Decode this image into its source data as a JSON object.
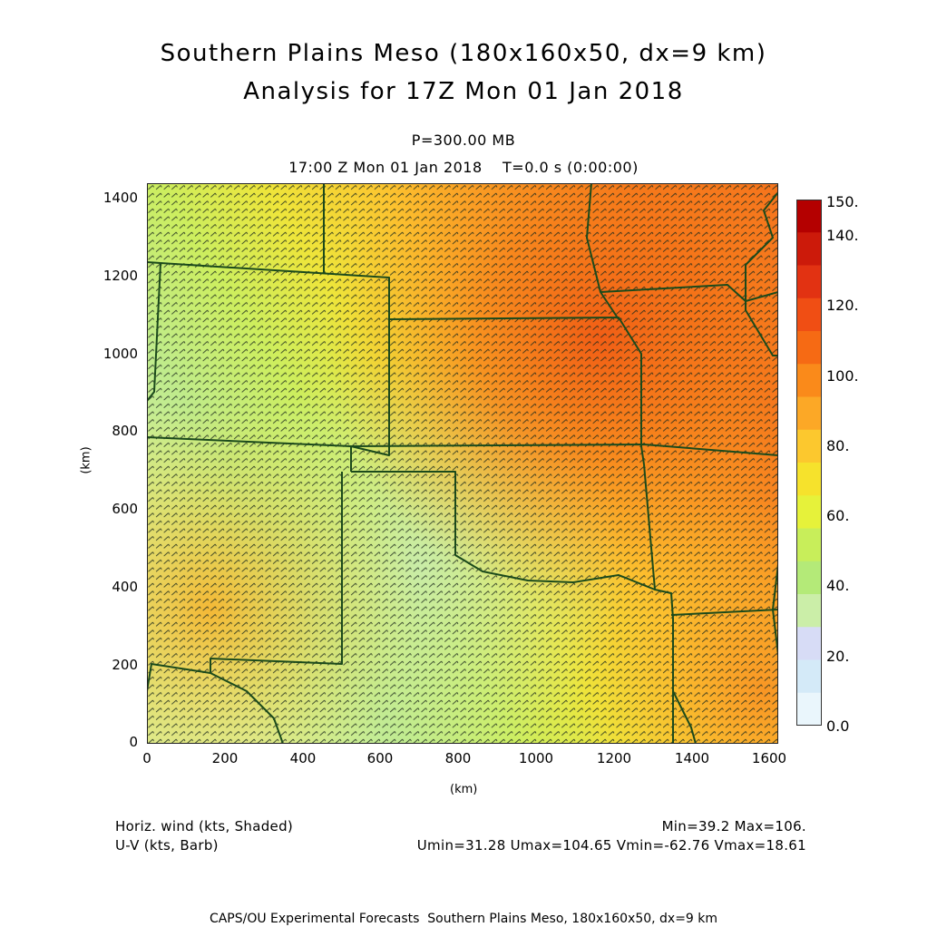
{
  "title": {
    "line1": "Southern Plains Meso (180x160x50, dx=9 km)",
    "line2": "Analysis for 17Z Mon 01 Jan 2018"
  },
  "level": "P=300.00 MB",
  "time_line": "17:00 Z Mon 01 Jan 2018    T=0.0 s (0:00:00)",
  "axes": {
    "x_unit": "(km)",
    "y_unit": "(km)",
    "x_ticks": [
      "0",
      "200",
      "400",
      "600",
      "800",
      "1000",
      "1200",
      "1400",
      "1600"
    ],
    "y_ticks": [
      "0",
      "200",
      "400",
      "600",
      "800",
      "1000",
      "1200",
      "1400"
    ]
  },
  "colorbar": {
    "labels": [
      "150.",
      "140.",
      "120.",
      "100.",
      "80.",
      "60.",
      "40.",
      "20.",
      "0.0"
    ],
    "colors": [
      "#b40000",
      "#cc1a0a",
      "#e23212",
      "#f04e14",
      "#f66a14",
      "#fa8a1a",
      "#fca826",
      "#fcc82e",
      "#f6e22c",
      "#e6f23a",
      "#c8ee5a",
      "#b4ea78",
      "#cbeea8",
      "#d7dcf6",
      "#d4eaf8",
      "#eaf6fc"
    ]
  },
  "legend": {
    "left_line1": "Horiz. wind (kts, Shaded)",
    "left_line2": "U-V (kts, Barb)",
    "right_line1": "Min=39.2 Max=106.",
    "right_line2": "Umin=31.28 Umax=104.65 Vmin=-62.76 Vmax=18.61"
  },
  "footer": "CAPS/OU Experimental Forecasts  Southern Plains Meso, 180x160x50, dx=9 km"
}
